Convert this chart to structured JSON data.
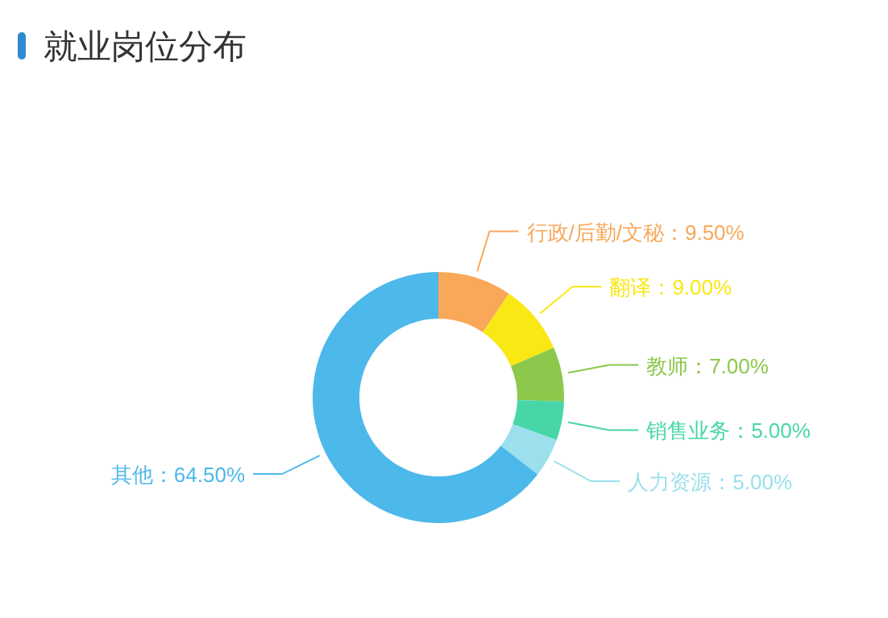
{
  "chart_data": {
    "type": "donut",
    "title": "就业岗位分布",
    "categories": [
      "行政/后勤/文秘",
      "翻译",
      "教师",
      "销售业务",
      "人力资源",
      "其他"
    ],
    "values": [
      9.5,
      9.0,
      7.0,
      5.0,
      5.0,
      64.5
    ],
    "value_labels": [
      "9.50%",
      "9.00%",
      "7.00%",
      "5.00%",
      "5.00%",
      "64.50%"
    ],
    "colors": [
      "#f9a85a",
      "#f9e814",
      "#8cc84b",
      "#48d6a8",
      "#9be0ec",
      "#4db8ea"
    ]
  }
}
